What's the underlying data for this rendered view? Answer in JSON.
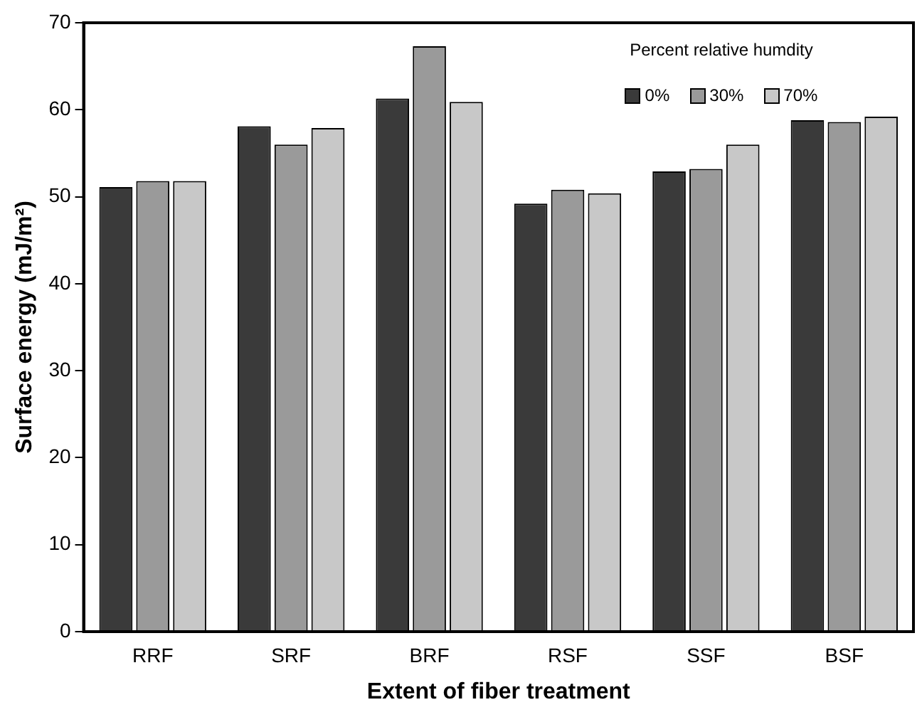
{
  "chart_data": {
    "type": "bar",
    "xlabel": "Extent of fiber treatment",
    "ylabel": "Surface energy (mJ/m²)",
    "legend_title": "Percent relative humdity",
    "categories": [
      "RRF",
      "SRF",
      "BRF",
      "RSF",
      "SSF",
      "BSF"
    ],
    "series": [
      {
        "name": "0%",
        "color": "#3a3a3a",
        "values": [
          51.1,
          58.1,
          61.3,
          49.2,
          52.9,
          58.8
        ]
      },
      {
        "name": "30%",
        "color": "#9a9a9a",
        "values": [
          51.8,
          56.0,
          67.3,
          50.8,
          53.2,
          58.6
        ]
      },
      {
        "name": "70%",
        "color": "#c8c8c8",
        "values": [
          51.8,
          57.9,
          60.9,
          50.4,
          56.0,
          59.2
        ]
      }
    ],
    "ylim": [
      0,
      70
    ],
    "yticks": [
      0,
      10,
      20,
      30,
      40,
      50,
      60,
      70
    ],
    "grid": false,
    "legend": "top right"
  }
}
